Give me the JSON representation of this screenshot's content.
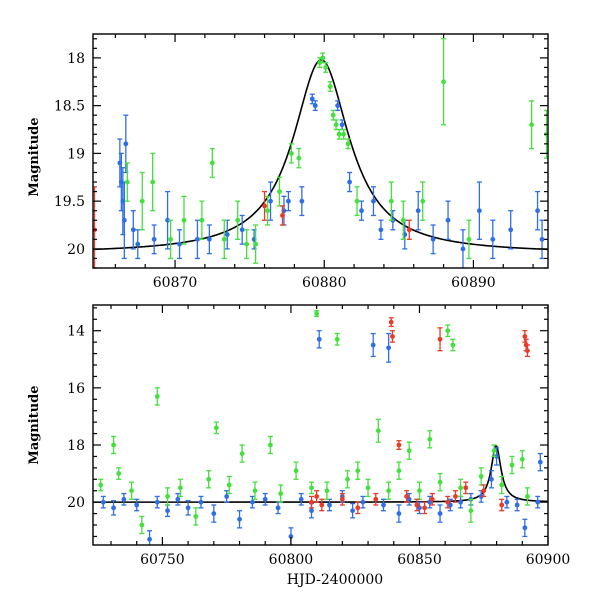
{
  "chart_data": [
    {
      "type": "scatter",
      "panel": "top",
      "xlabel": "",
      "ylabel": "Magnitude",
      "xlim": [
        60864.5,
        60895
      ],
      "ylim": [
        20.2,
        17.75
      ],
      "y_inverted": true,
      "xticks": [
        60870,
        60880,
        60890
      ],
      "yticks": [
        18,
        18.5,
        19,
        19.5,
        20
      ],
      "ytick_labels": [
        "18",
        "18.5",
        "19",
        "19.5",
        "20"
      ],
      "grid": false,
      "legend": "none",
      "model_curve": {
        "color": "#000000",
        "baseline": 20.05,
        "peak_x": 60879.8,
        "peak_mag": 18.02,
        "timescale_days": 2.3
      },
      "series": [
        {
          "color": "#2f6ee8",
          "points": [
            [
              60866.3,
              19.1,
              0.25
            ],
            [
              60866.4,
              19.3,
              0.3
            ],
            [
              60866.5,
              19.5,
              0.35
            ],
            [
              60866.6,
              19.7,
              0.4
            ],
            [
              60866.7,
              18.9,
              0.3
            ],
            [
              60867.2,
              19.8,
              0.2
            ],
            [
              60867.5,
              19.95,
              0.15
            ],
            [
              60868.6,
              19.9,
              0.15
            ],
            [
              60869.5,
              19.7,
              0.3
            ],
            [
              60870.3,
              19.95,
              0.15
            ],
            [
              60871.5,
              19.9,
              0.2
            ],
            [
              60872.3,
              19.9,
              0.15
            ],
            [
              60873.5,
              19.85,
              0.15
            ],
            [
              60874.5,
              19.8,
              0.15
            ],
            [
              60875.3,
              19.9,
              0.1
            ],
            [
              60876.4,
              19.5,
              0.2
            ],
            [
              60877.3,
              19.6,
              0.15
            ],
            [
              60877.6,
              19.5,
              0.1
            ],
            [
              60878.5,
              19.5,
              0.15
            ],
            [
              60879.2,
              18.43,
              0.05
            ],
            [
              60879.4,
              18.5,
              0.05
            ],
            [
              60880.9,
              18.5,
              0.05
            ],
            [
              60881.2,
              18.7,
              0.05
            ],
            [
              60881.7,
              19.3,
              0.1
            ],
            [
              60882.5,
              19.6,
              0.1
            ],
            [
              60883.3,
              19.5,
              0.15
            ],
            [
              60883.8,
              19.8,
              0.1
            ],
            [
              60884.6,
              19.7,
              0.1
            ],
            [
              60885.4,
              19.85,
              0.15
            ],
            [
              60886.3,
              19.6,
              0.2
            ],
            [
              60887.3,
              19.9,
              0.15
            ],
            [
              60888.3,
              19.7,
              0.2
            ],
            [
              60889.3,
              20.0,
              0.2
            ],
            [
              60890.4,
              19.6,
              0.3
            ],
            [
              60891.3,
              19.9,
              0.2
            ],
            [
              60892.5,
              19.8,
              0.2
            ],
            [
              60894.3,
              19.6,
              0.2
            ],
            [
              60894.6,
              19.9,
              0.2
            ]
          ]
        },
        {
          "color": "#44e03c",
          "points": [
            [
              60866.8,
              19.3,
              0.2
            ],
            [
              60867.8,
              19.5,
              0.3
            ],
            [
              60868.5,
              19.3,
              0.3
            ],
            [
              60869.7,
              19.9,
              0.2
            ],
            [
              60870.6,
              19.7,
              0.25
            ],
            [
              60871.8,
              19.7,
              0.2
            ],
            [
              60872.5,
              19.1,
              0.15
            ],
            [
              60873.3,
              19.9,
              0.2
            ],
            [
              60874.2,
              19.7,
              0.2
            ],
            [
              60874.8,
              19.95,
              0.15
            ],
            [
              60875.4,
              19.95,
              0.2
            ],
            [
              60876.2,
              19.6,
              0.15
            ],
            [
              60877.0,
              19.4,
              0.15
            ],
            [
              60877.8,
              19.0,
              0.1
            ],
            [
              60878.3,
              19.05,
              0.1
            ],
            [
              60879.7,
              18.05,
              0.05
            ],
            [
              60879.9,
              18.0,
              0.05
            ],
            [
              60880.1,
              18.1,
              0.05
            ],
            [
              60880.4,
              18.3,
              0.05
            ],
            [
              60880.6,
              18.6,
              0.05
            ],
            [
              60880.8,
              18.7,
              0.05
            ],
            [
              60881.0,
              18.8,
              0.05
            ],
            [
              60881.3,
              18.8,
              0.05
            ],
            [
              60881.6,
              18.9,
              0.05
            ],
            [
              60882.2,
              19.5,
              0.15
            ],
            [
              60884.5,
              19.5,
              0.2
            ],
            [
              60885.3,
              19.7,
              0.2
            ],
            [
              60886.6,
              19.5,
              0.2
            ],
            [
              60888.0,
              18.25,
              0.45
            ],
            [
              60889.7,
              19.9,
              0.2
            ],
            [
              60893.9,
              18.7,
              0.25
            ],
            [
              60894.9,
              18.8,
              0.25
            ]
          ]
        },
        {
          "color": "#ea3a28",
          "points": [
            [
              60864.6,
              19.8,
              0.45
            ],
            [
              60876.0,
              19.55,
              0.15
            ],
            [
              60877.2,
              19.65,
              0.1
            ],
            [
              60885.7,
              19.8,
              0.1
            ]
          ]
        }
      ]
    },
    {
      "type": "scatter",
      "panel": "bottom",
      "xlabel": "HJD-2400000",
      "ylabel": "Magnitude",
      "xlim": [
        60723,
        60900
      ],
      "ylim": [
        21.5,
        13.1
      ],
      "y_inverted": true,
      "xticks": [
        60750,
        60800,
        60850,
        60900
      ],
      "yticks": [
        14,
        16,
        18,
        20
      ],
      "ytick_labels": [
        "14",
        "16",
        "18",
        "20"
      ],
      "grid": false,
      "legend": "none",
      "model_curve": {
        "color": "#000000",
        "baseline": 20.0,
        "peak_x": 60879.8,
        "peak_mag": 18.02,
        "timescale_days": 2.3
      },
      "series": [
        {
          "color": "#2f6ee8",
          "points": [
            [
              60727,
              20.0,
              0.2
            ],
            [
              60731,
              20.2,
              0.25
            ],
            [
              60735,
              19.9,
              0.2
            ],
            [
              60740,
              20.1,
              0.2
            ],
            [
              60745,
              21.3,
              0.3
            ],
            [
              60748,
              20.0,
              0.2
            ],
            [
              60752,
              20.3,
              0.2
            ],
            [
              60756,
              19.9,
              0.2
            ],
            [
              60760,
              20.2,
              0.25
            ],
            [
              60765,
              20.0,
              0.2
            ],
            [
              60770,
              20.4,
              0.3
            ],
            [
              60775,
              19.8,
              0.2
            ],
            [
              60780,
              20.6,
              0.3
            ],
            [
              60785,
              20.0,
              0.2
            ],
            [
              60790,
              19.9,
              0.2
            ],
            [
              60795,
              20.2,
              0.2
            ],
            [
              60800,
              21.2,
              0.3
            ],
            [
              60804,
              19.9,
              0.2
            ],
            [
              60808,
              20.3,
              0.25
            ],
            [
              60811,
              14.3,
              0.3
            ],
            [
              60815,
              20.1,
              0.2
            ],
            [
              60820,
              19.8,
              0.2
            ],
            [
              60824,
              20.3,
              0.25
            ],
            [
              60828,
              20.0,
              0.2
            ],
            [
              60832,
              14.5,
              0.4
            ],
            [
              60836,
              20.1,
              0.2
            ],
            [
              60838,
              14.6,
              0.5
            ],
            [
              60842,
              20.4,
              0.3
            ],
            [
              60846,
              19.9,
              0.2
            ],
            [
              60850,
              20.2,
              0.2
            ],
            [
              60854,
              20.0,
              0.2
            ],
            [
              60858,
              20.4,
              0.3
            ],
            [
              60862,
              20.1,
              0.2
            ],
            [
              60866,
              20.0,
              0.2
            ],
            [
              60870,
              19.9,
              0.2
            ],
            [
              60874,
              19.8,
              0.2
            ],
            [
              60878,
              19.2,
              0.3
            ],
            [
              60880,
              18.4,
              0.3
            ],
            [
              60884,
              20.0,
              0.2
            ],
            [
              60888,
              20.1,
              0.2
            ],
            [
              60891,
              20.9,
              0.3
            ],
            [
              60896,
              20.0,
              0.2
            ],
            [
              60897,
              18.6,
              0.3
            ]
          ]
        },
        {
          "color": "#44e03c",
          "points": [
            [
              60726,
              19.4,
              0.2
            ],
            [
              60731,
              18.0,
              0.3
            ],
            [
              60733,
              19.0,
              0.2
            ],
            [
              60738,
              19.6,
              0.3
            ],
            [
              60742,
              20.8,
              0.3
            ],
            [
              60748,
              16.3,
              0.3
            ],
            [
              60752,
              19.8,
              0.3
            ],
            [
              60757,
              19.5,
              0.3
            ],
            [
              60763,
              20.5,
              0.3
            ],
            [
              60768,
              19.2,
              0.3
            ],
            [
              60771,
              17.4,
              0.2
            ],
            [
              60776,
              19.4,
              0.3
            ],
            [
              60781,
              18.3,
              0.3
            ],
            [
              60786,
              19.6,
              0.3
            ],
            [
              60792,
              18.0,
              0.3
            ],
            [
              60796,
              19.7,
              0.3
            ],
            [
              60802,
              18.9,
              0.3
            ],
            [
              60808,
              19.5,
              0.2
            ],
            [
              60810,
              13.4,
              0.1
            ],
            [
              60814,
              19.6,
              0.3
            ],
            [
              60818,
              14.3,
              0.2
            ],
            [
              60822,
              19.2,
              0.3
            ],
            [
              60826,
              18.9,
              0.3
            ],
            [
              60830,
              19.5,
              0.3
            ],
            [
              60834,
              17.5,
              0.4
            ],
            [
              60838,
              19.6,
              0.3
            ],
            [
              60842,
              18.9,
              0.3
            ],
            [
              60846,
              18.2,
              0.3
            ],
            [
              60850,
              19.6,
              0.3
            ],
            [
              60854,
              17.8,
              0.3
            ],
            [
              60858,
              19.3,
              0.3
            ],
            [
              60861,
              14.0,
              0.2
            ],
            [
              60863,
              14.5,
              0.2
            ],
            [
              60866,
              19.5,
              0.3
            ],
            [
              60870,
              20.3,
              0.4
            ],
            [
              60874,
              19.1,
              0.3
            ],
            [
              60879,
              18.2,
              0.2
            ],
            [
              60882,
              19.4,
              0.3
            ],
            [
              60886,
              18.7,
              0.3
            ],
            [
              60890,
              18.5,
              0.3
            ],
            [
              60892,
              19.8,
              0.3
            ]
          ]
        },
        {
          "color": "#ea3a28",
          "points": [
            [
              60808,
              20.0,
              0.2
            ],
            [
              60810,
              19.8,
              0.2
            ],
            [
              60812,
              20.1,
              0.2
            ],
            [
              60820,
              19.9,
              0.2
            ],
            [
              60826,
              20.2,
              0.2
            ],
            [
              60833,
              19.9,
              0.2
            ],
            [
              60839,
              13.7,
              0.15
            ],
            [
              60839.5,
              14.2,
              0.2
            ],
            [
              60842,
              18.0,
              0.15
            ],
            [
              60845,
              19.8,
              0.2
            ],
            [
              60849,
              20.1,
              0.2
            ],
            [
              60852,
              20.2,
              0.2
            ],
            [
              60855,
              19.9,
              0.2
            ],
            [
              60858,
              14.3,
              0.4
            ],
            [
              60861,
              20.0,
              0.2
            ],
            [
              60864,
              19.8,
              0.2
            ],
            [
              60868,
              19.5,
              0.2
            ],
            [
              60875,
              19.6,
              0.2
            ],
            [
              60882,
              20.1,
              0.2
            ],
            [
              60891,
              14.2,
              0.2
            ],
            [
              60891.5,
              14.5,
              0.2
            ],
            [
              60892,
              14.7,
              0.2
            ]
          ]
        }
      ]
    }
  ]
}
